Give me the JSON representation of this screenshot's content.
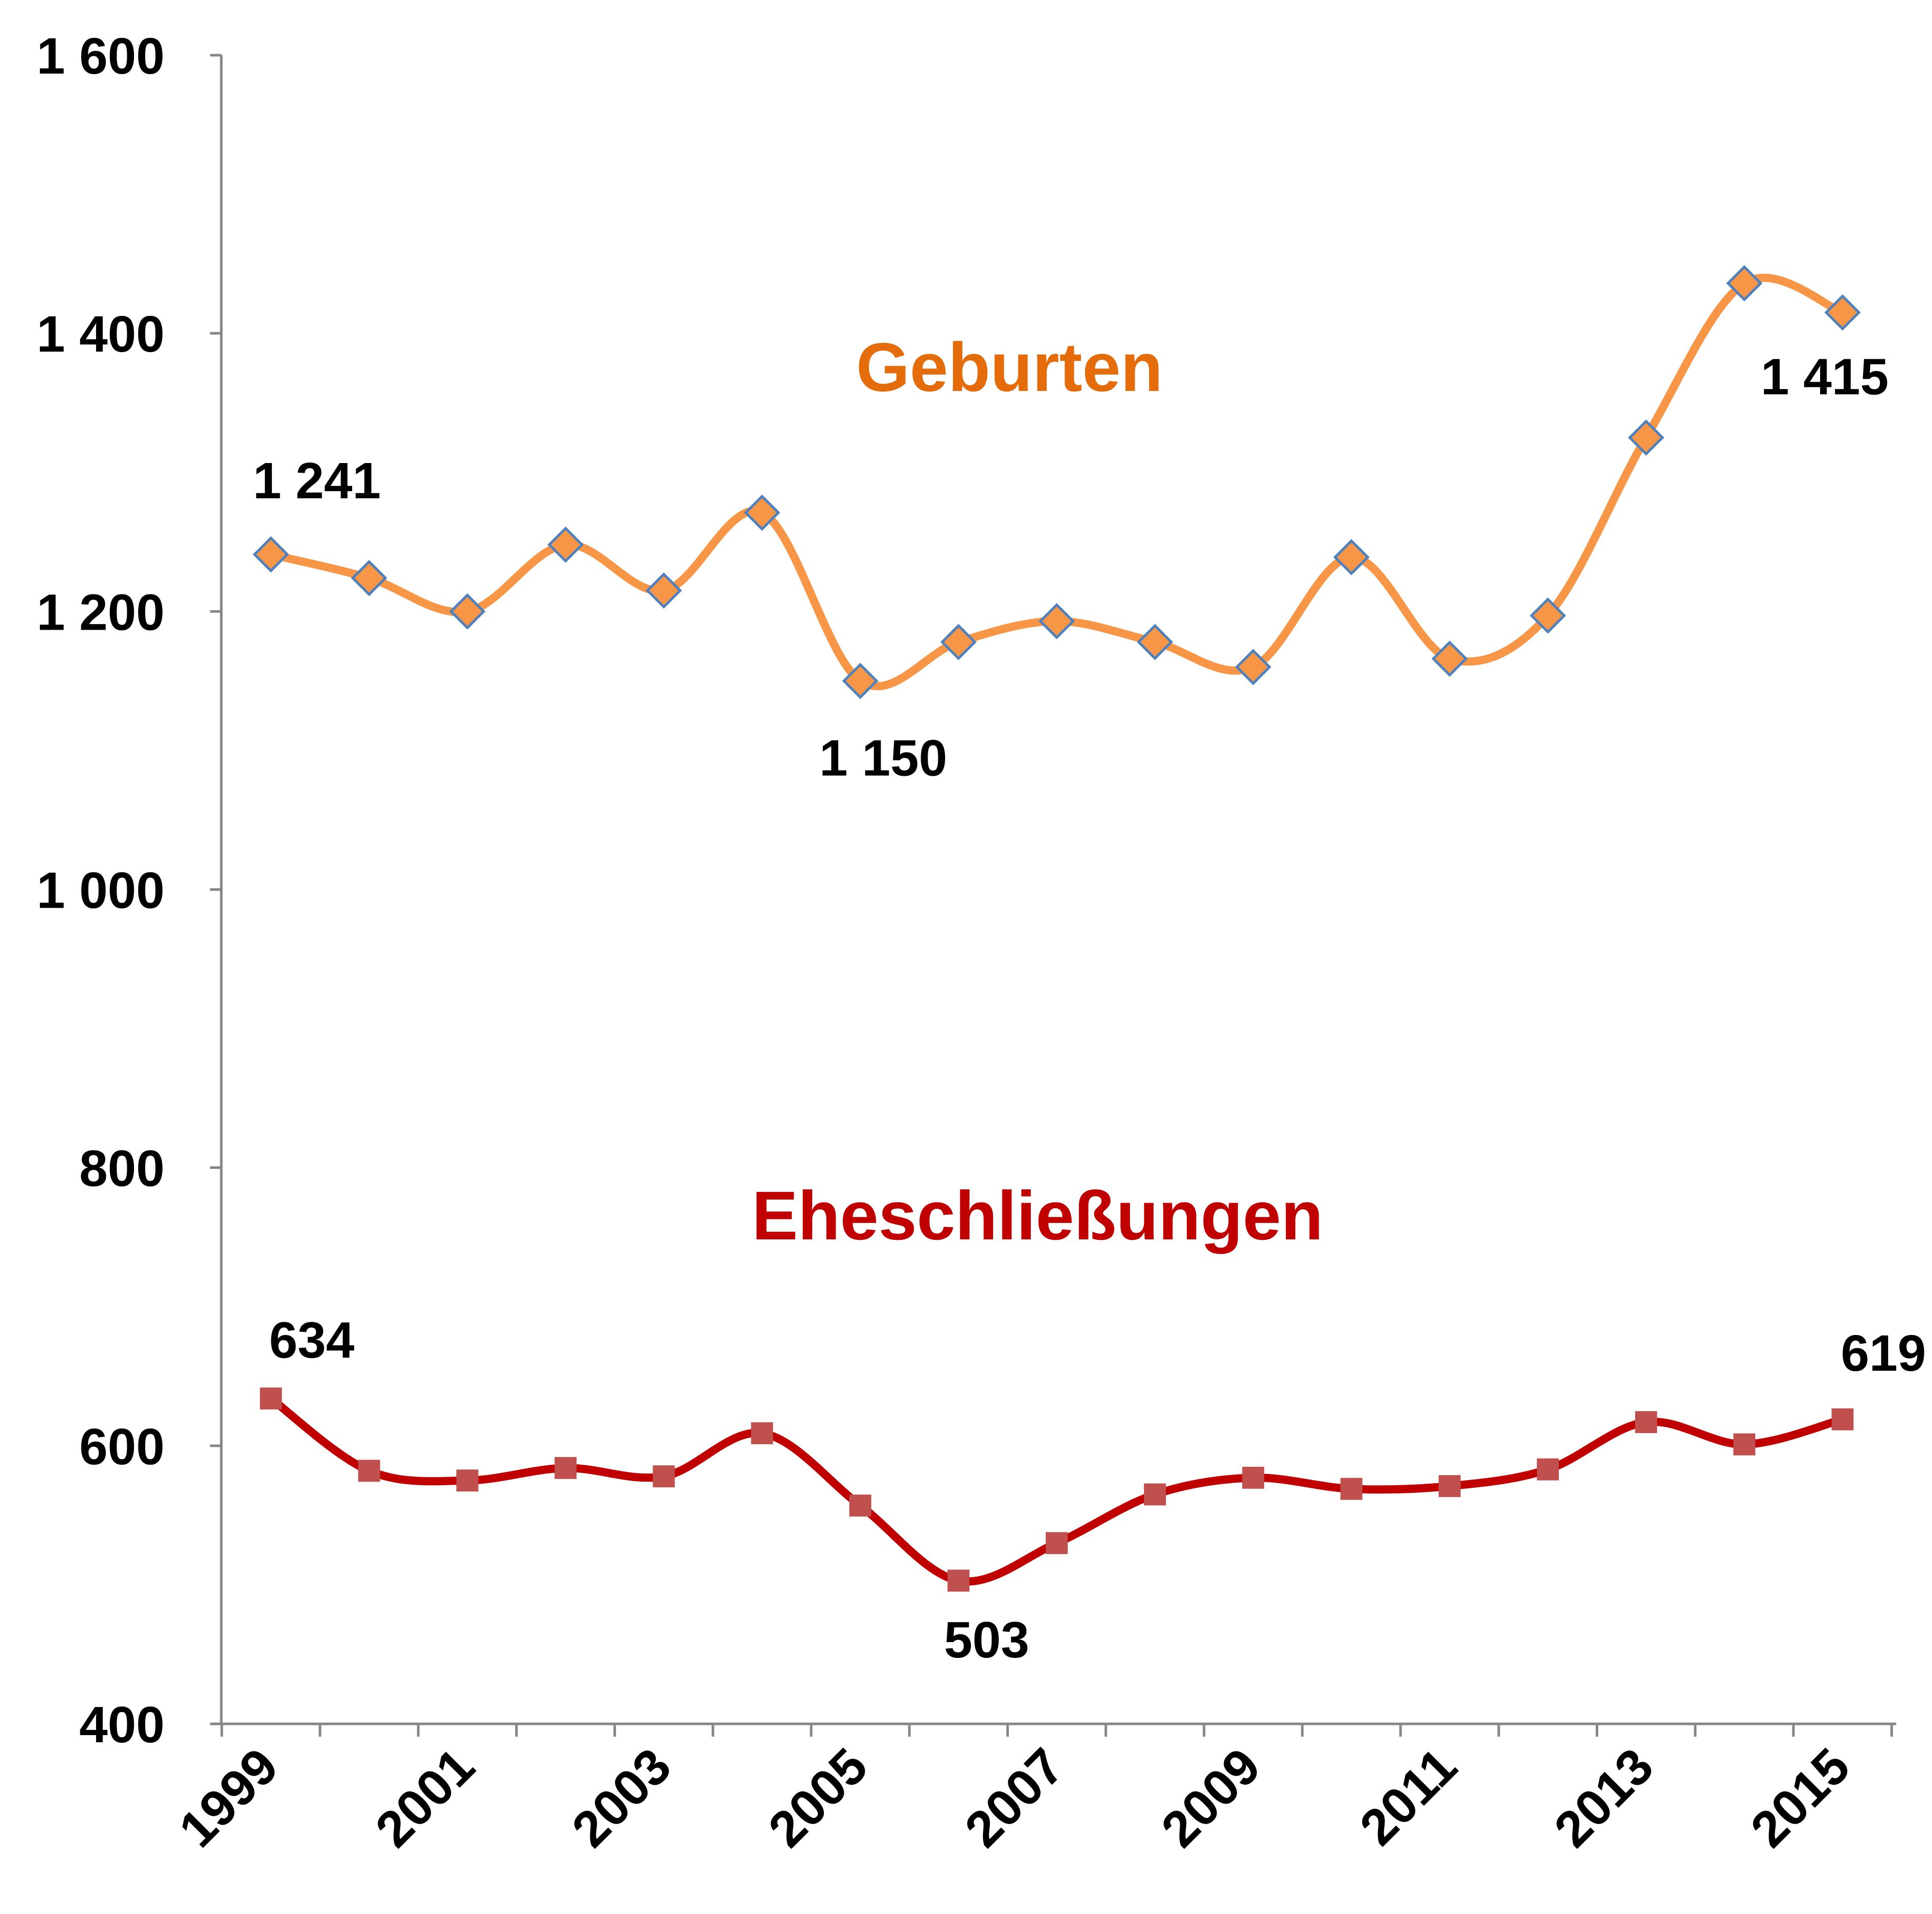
{
  "chart_data": {
    "type": "line",
    "title": "",
    "xlabel": "",
    "ylabel": "",
    "x": [
      1999,
      2000,
      2001,
      2002,
      2003,
      2004,
      2005,
      2006,
      2007,
      2008,
      2009,
      2010,
      2011,
      2012,
      2013,
      2014,
      2015
    ],
    "x_tick_labels": [
      "1999",
      "2001",
      "2003",
      "2005",
      "2007",
      "2009",
      "2011",
      "2013",
      "2015"
    ],
    "ylim": [
      400,
      1600
    ],
    "y_tick_labels": [
      "400",
      "600",
      "800",
      "1 000",
      "1 200",
      "1 400",
      "1 600"
    ],
    "grid": false,
    "legend": "none",
    "series": [
      {
        "name": "Geburten",
        "color": "#F79646",
        "marker": "diamond",
        "marker_fill": "#F79646",
        "marker_edge": "#4F81BD",
        "smooth": true,
        "values": [
          1241,
          1224,
          1200,
          1248,
          1215,
          1271,
          1150,
          1178,
          1193,
          1178,
          1160,
          1239,
          1166,
          1197,
          1325,
          1436,
          1415
        ]
      },
      {
        "name": "Eheschließungen",
        "color": "#C00000",
        "marker": "square",
        "marker_fill": "#C0504D",
        "marker_edge": "#C0504D",
        "smooth": true,
        "values": [
          634,
          582,
          575,
          584,
          578,
          609,
          557,
          503,
          530,
          565,
          577,
          569,
          571,
          583,
          617,
          601,
          619
        ]
      }
    ],
    "annotations": [
      {
        "series": 0,
        "index": 0,
        "text": "1 241"
      },
      {
        "series": 0,
        "index": 6,
        "text": "1 150"
      },
      {
        "series": 0,
        "index": 16,
        "text": "1 415"
      },
      {
        "series": 1,
        "index": 0,
        "text": "634"
      },
      {
        "series": 1,
        "index": 7,
        "text": "503"
      },
      {
        "series": 1,
        "index": 16,
        "text": "619"
      }
    ]
  }
}
